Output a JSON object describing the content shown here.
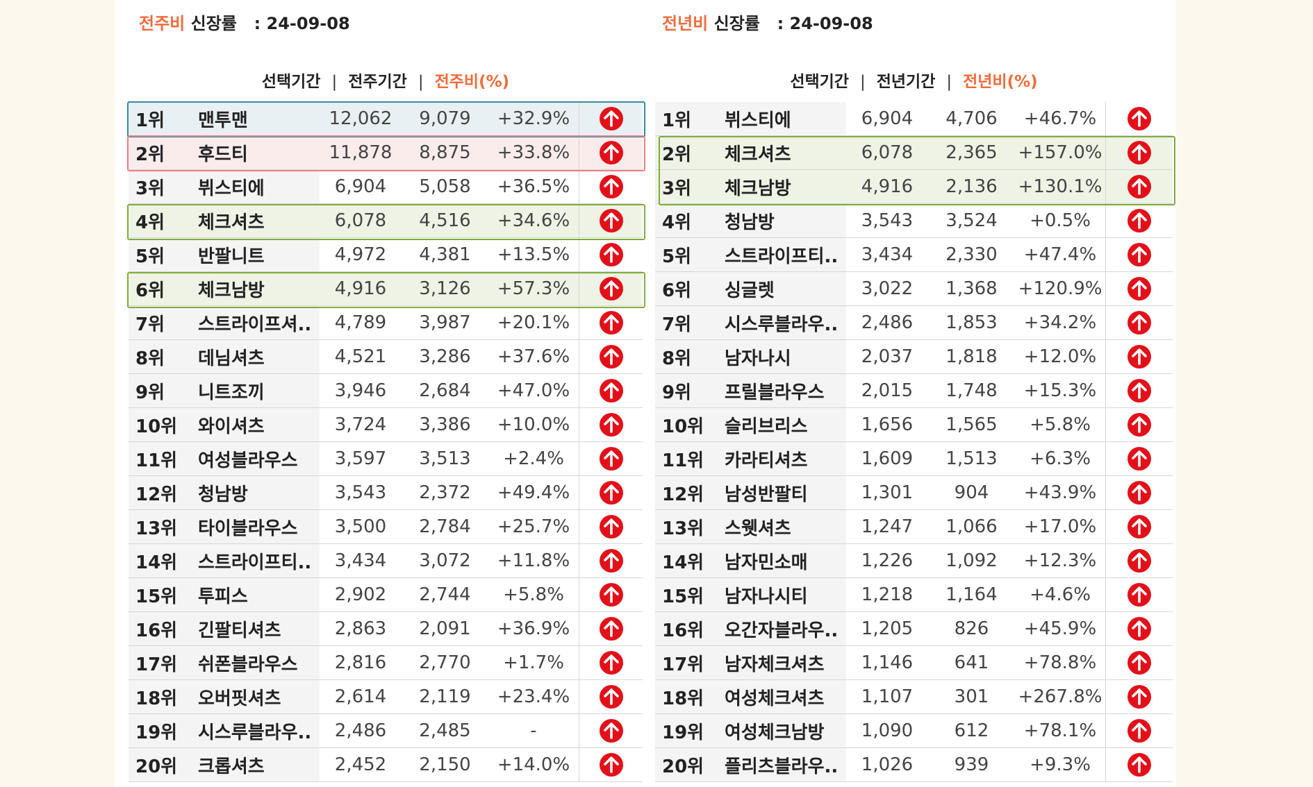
{
  "weekly": {
    "title_accent": "전주비",
    "title_rest": "신장률",
    "title_date": ": 24-09-08",
    "col_selected": "선택기간",
    "col_prev": "전주기간",
    "col_ratio": "전주비(%)",
    "separator": "|",
    "rows": [
      {
        "rank": "1위",
        "name": "맨투맨",
        "cur": "12,062",
        "prev": "9,079",
        "pct": "+32.9%",
        "icon": "arrow-up-circle-icon"
      },
      {
        "rank": "2위",
        "name": "후드티",
        "cur": "11,878",
        "prev": "8,875",
        "pct": "+33.8%",
        "icon": "arrow-up-circle-icon"
      },
      {
        "rank": "3위",
        "name": "뷔스티에",
        "cur": "6,904",
        "prev": "5,058",
        "pct": "+36.5%",
        "icon": "arrow-up-circle-icon"
      },
      {
        "rank": "4위",
        "name": "체크셔츠",
        "cur": "6,078",
        "prev": "4,516",
        "pct": "+34.6%",
        "icon": "arrow-up-circle-icon"
      },
      {
        "rank": "5위",
        "name": "반팔니트",
        "cur": "4,972",
        "prev": "4,381",
        "pct": "+13.5%",
        "icon": "arrow-up-circle-icon"
      },
      {
        "rank": "6위",
        "name": "체크남방",
        "cur": "4,916",
        "prev": "3,126",
        "pct": "+57.3%",
        "icon": "arrow-up-circle-icon"
      },
      {
        "rank": "7위",
        "name": "스트라이프셔..",
        "cur": "4,789",
        "prev": "3,987",
        "pct": "+20.1%",
        "icon": "arrow-up-circle-icon"
      },
      {
        "rank": "8위",
        "name": "데님셔츠",
        "cur": "4,521",
        "prev": "3,286",
        "pct": "+37.6%",
        "icon": "arrow-up-circle-icon"
      },
      {
        "rank": "9위",
        "name": "니트조끼",
        "cur": "3,946",
        "prev": "2,684",
        "pct": "+47.0%",
        "icon": "arrow-up-circle-icon"
      },
      {
        "rank": "10위",
        "name": "와이셔츠",
        "cur": "3,724",
        "prev": "3,386",
        "pct": "+10.0%",
        "icon": "arrow-up-circle-icon"
      },
      {
        "rank": "11위",
        "name": "여성블라우스",
        "cur": "3,597",
        "prev": "3,513",
        "pct": "+2.4%",
        "icon": "arrow-up-circle-icon"
      },
      {
        "rank": "12위",
        "name": "청남방",
        "cur": "3,543",
        "prev": "2,372",
        "pct": "+49.4%",
        "icon": "arrow-up-circle-icon"
      },
      {
        "rank": "13위",
        "name": "타이블라우스",
        "cur": "3,500",
        "prev": "2,784",
        "pct": "+25.7%",
        "icon": "arrow-up-circle-icon"
      },
      {
        "rank": "14위",
        "name": "스트라이프티..",
        "cur": "3,434",
        "prev": "3,072",
        "pct": "+11.8%",
        "icon": "arrow-up-circle-icon"
      },
      {
        "rank": "15위",
        "name": "투피스",
        "cur": "2,902",
        "prev": "2,744",
        "pct": "+5.8%",
        "icon": "arrow-up-circle-icon"
      },
      {
        "rank": "16위",
        "name": "긴팔티셔츠",
        "cur": "2,863",
        "prev": "2,091",
        "pct": "+36.9%",
        "icon": "arrow-up-circle-icon"
      },
      {
        "rank": "17위",
        "name": "쉬폰블라우스",
        "cur": "2,816",
        "prev": "2,770",
        "pct": "+1.7%",
        "icon": "arrow-up-circle-icon"
      },
      {
        "rank": "18위",
        "name": "오버핏셔츠",
        "cur": "2,614",
        "prev": "2,119",
        "pct": "+23.4%",
        "icon": "arrow-up-circle-icon"
      },
      {
        "rank": "19위",
        "name": "시스루블라우..",
        "cur": "2,486",
        "prev": "2,485",
        "pct": "-",
        "icon": "arrow-up-circle-icon"
      },
      {
        "rank": "20위",
        "name": "크롭셔츠",
        "cur": "2,452",
        "prev": "2,150",
        "pct": "+14.0%",
        "icon": "arrow-up-circle-icon"
      }
    ]
  },
  "yearly": {
    "title_accent": "전년비",
    "title_rest": "신장률",
    "title_date": ": 24-09-08",
    "col_selected": "선택기간",
    "col_prev": "전년기간",
    "col_ratio": "전년비(%)",
    "separator": "|",
    "rows": [
      {
        "rank": "1위",
        "name": "뷔스티에",
        "cur": "6,904",
        "prev": "4,706",
        "pct": "+46.7%",
        "icon": "arrow-up-circle-icon"
      },
      {
        "rank": "2위",
        "name": "체크셔츠",
        "cur": "6,078",
        "prev": "2,365",
        "pct": "+157.0%",
        "icon": "arrow-up-circle-icon"
      },
      {
        "rank": "3위",
        "name": "체크남방",
        "cur": "4,916",
        "prev": "2,136",
        "pct": "+130.1%",
        "icon": "arrow-up-circle-icon"
      },
      {
        "rank": "4위",
        "name": "청남방",
        "cur": "3,543",
        "prev": "3,524",
        "pct": "+0.5%",
        "icon": "arrow-up-circle-icon"
      },
      {
        "rank": "5위",
        "name": "스트라이프티..",
        "cur": "3,434",
        "prev": "2,330",
        "pct": "+47.4%",
        "icon": "arrow-up-circle-icon"
      },
      {
        "rank": "6위",
        "name": "싱글렛",
        "cur": "3,022",
        "prev": "1,368",
        "pct": "+120.9%",
        "icon": "arrow-up-circle-icon"
      },
      {
        "rank": "7위",
        "name": "시스루블라우..",
        "cur": "2,486",
        "prev": "1,853",
        "pct": "+34.2%",
        "icon": "arrow-up-circle-icon"
      },
      {
        "rank": "8위",
        "name": "남자나시",
        "cur": "2,037",
        "prev": "1,818",
        "pct": "+12.0%",
        "icon": "arrow-up-circle-icon"
      },
      {
        "rank": "9위",
        "name": "프릴블라우스",
        "cur": "2,015",
        "prev": "1,748",
        "pct": "+15.3%",
        "icon": "arrow-up-circle-icon"
      },
      {
        "rank": "10위",
        "name": "슬리브리스",
        "cur": "1,656",
        "prev": "1,565",
        "pct": "+5.8%",
        "icon": "arrow-up-circle-icon"
      },
      {
        "rank": "11위",
        "name": "카라티셔츠",
        "cur": "1,609",
        "prev": "1,513",
        "pct": "+6.3%",
        "icon": "arrow-up-circle-icon"
      },
      {
        "rank": "12위",
        "name": "남성반팔티",
        "cur": "1,301",
        "prev": "904",
        "pct": "+43.9%",
        "icon": "arrow-up-circle-icon"
      },
      {
        "rank": "13위",
        "name": "스웻셔츠",
        "cur": "1,247",
        "prev": "1,066",
        "pct": "+17.0%",
        "icon": "arrow-up-circle-icon"
      },
      {
        "rank": "14위",
        "name": "남자민소매",
        "cur": "1,226",
        "prev": "1,092",
        "pct": "+12.3%",
        "icon": "arrow-up-circle-icon"
      },
      {
        "rank": "15위",
        "name": "남자나시티",
        "cur": "1,218",
        "prev": "1,164",
        "pct": "+4.6%",
        "icon": "arrow-up-circle-icon"
      },
      {
        "rank": "16위",
        "name": "오간자블라우..",
        "cur": "1,205",
        "prev": "826",
        "pct": "+45.9%",
        "icon": "arrow-up-circle-icon"
      },
      {
        "rank": "17위",
        "name": "남자체크셔츠",
        "cur": "1,146",
        "prev": "641",
        "pct": "+78.8%",
        "icon": "arrow-up-circle-icon"
      },
      {
        "rank": "18위",
        "name": "여성체크셔츠",
        "cur": "1,107",
        "prev": "301",
        "pct": "+267.8%",
        "icon": "arrow-up-circle-icon"
      },
      {
        "rank": "19위",
        "name": "여성체크남방",
        "cur": "1,090",
        "prev": "612",
        "pct": "+78.1%",
        "icon": "arrow-up-circle-icon"
      },
      {
        "rank": "20위",
        "name": "플리츠블라우..",
        "cur": "1,026",
        "prev": "939",
        "pct": "+9.3%",
        "icon": "arrow-up-circle-icon"
      }
    ]
  },
  "colors": {
    "accent": "#f26b3a",
    "up_icon": "#e3101a",
    "highlight_blue": "#2f8ea1",
    "highlight_pink": "#ef7f82",
    "highlight_green": "#7fad3c"
  }
}
